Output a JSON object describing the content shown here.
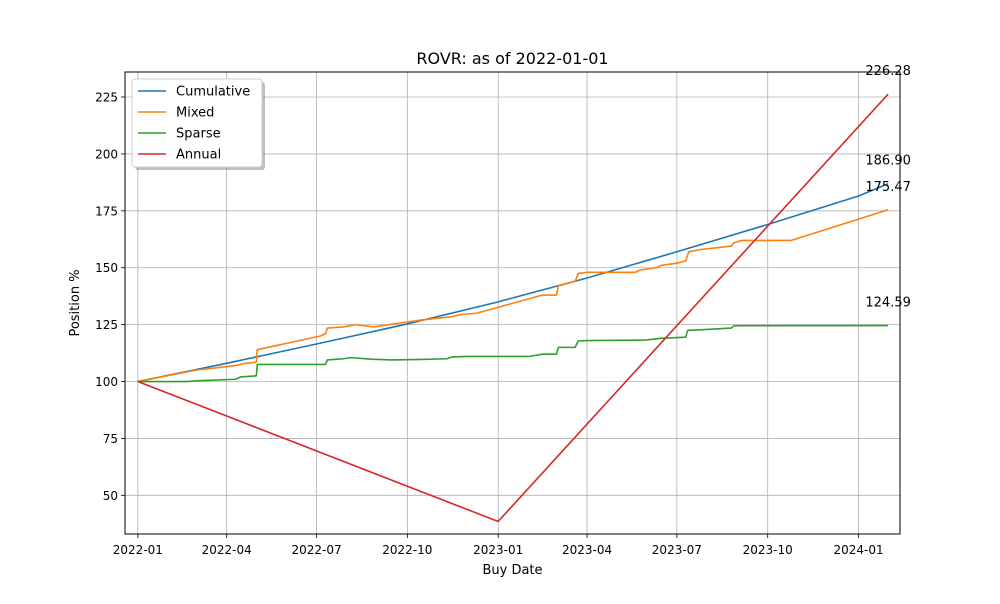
{
  "chart_data": {
    "type": "line",
    "title": "ROVR: as of 2022-01-01",
    "xlabel": "Buy Date",
    "ylabel": "Position %",
    "x_ticks": [
      "2022-01",
      "2022-04",
      "2022-07",
      "2022-10",
      "2023-01",
      "2023-04",
      "2023-07",
      "2023-10",
      "2024-01"
    ],
    "y_ticks": [
      50,
      75,
      100,
      125,
      150,
      175,
      200,
      225
    ],
    "xlim": [
      "2021-12-19",
      "2024-02-12"
    ],
    "ylim": [
      33,
      236
    ],
    "grid": true,
    "legend_position": "upper-left",
    "series": [
      {
        "name": "Cumulative",
        "color": "#1f77b4",
        "end_label": "186.90",
        "points": [
          [
            "2022-01-01",
            100.0
          ],
          [
            "2022-04-01",
            108.0
          ],
          [
            "2022-07-01",
            116.5
          ],
          [
            "2022-10-01",
            125.3
          ],
          [
            "2023-01-01",
            135.0
          ],
          [
            "2023-04-01",
            145.5
          ],
          [
            "2023-07-01",
            157.0
          ],
          [
            "2023-10-01",
            169.0
          ],
          [
            "2024-01-01",
            181.5
          ],
          [
            "2024-01-31",
            186.9
          ]
        ]
      },
      {
        "name": "Mixed",
        "color": "#ff7f0e",
        "end_label": "175.47",
        "points": [
          [
            "2022-01-01",
            100.0
          ],
          [
            "2022-03-01",
            105.0
          ],
          [
            "2022-04-10",
            107.0
          ],
          [
            "2022-04-20",
            108.0
          ],
          [
            "2022-05-01",
            108.5
          ],
          [
            "2022-05-02",
            114.0
          ],
          [
            "2022-07-05",
            120.0
          ],
          [
            "2022-07-10",
            121.0
          ],
          [
            "2022-07-12",
            123.5
          ],
          [
            "2022-07-28",
            124.0
          ],
          [
            "2022-08-10",
            125.0
          ],
          [
            "2022-08-28",
            124.0
          ],
          [
            "2022-09-20",
            125.5
          ],
          [
            "2022-10-15",
            127.0
          ],
          [
            "2022-11-15",
            128.5
          ],
          [
            "2022-11-25",
            129.5
          ],
          [
            "2022-12-10",
            130.0
          ],
          [
            "2023-02-15",
            138.0
          ],
          [
            "2023-03-01",
            138.0
          ],
          [
            "2023-03-03",
            142.0
          ],
          [
            "2023-03-20",
            144.0
          ],
          [
            "2023-03-23",
            147.5
          ],
          [
            "2023-04-01",
            148.0
          ],
          [
            "2023-05-20",
            148.0
          ],
          [
            "2023-05-25",
            149.0
          ],
          [
            "2023-06-10",
            150.0
          ],
          [
            "2023-06-15",
            151.0
          ],
          [
            "2023-07-01",
            152.0
          ],
          [
            "2023-07-10",
            153.0
          ],
          [
            "2023-07-13",
            157.0
          ],
          [
            "2023-07-25",
            158.0
          ],
          [
            "2023-08-25",
            159.5
          ],
          [
            "2023-08-28",
            161.0
          ],
          [
            "2023-09-05",
            162.0
          ],
          [
            "2023-10-25",
            162.0
          ],
          [
            "2024-01-31",
            175.47
          ]
        ]
      },
      {
        "name": "Sparse",
        "color": "#2ca02c",
        "end_label": "124.59",
        "points": [
          [
            "2022-01-01",
            100.0
          ],
          [
            "2022-02-20",
            100.0
          ],
          [
            "2022-03-01",
            100.3
          ],
          [
            "2022-04-10",
            101.0
          ],
          [
            "2022-04-15",
            102.0
          ],
          [
            "2022-05-01",
            102.5
          ],
          [
            "2022-05-02",
            107.5
          ],
          [
            "2022-07-10",
            107.5
          ],
          [
            "2022-07-12",
            109.5
          ],
          [
            "2022-07-28",
            110.0
          ],
          [
            "2022-08-05",
            110.5
          ],
          [
            "2022-08-25",
            109.8
          ],
          [
            "2022-09-15",
            109.5
          ],
          [
            "2022-10-15",
            109.7
          ],
          [
            "2022-11-10",
            110.0
          ],
          [
            "2022-11-15",
            110.8
          ],
          [
            "2022-12-01",
            111.0
          ],
          [
            "2023-02-01",
            111.0
          ],
          [
            "2023-02-15",
            112.0
          ],
          [
            "2023-03-01",
            112.0
          ],
          [
            "2023-03-03",
            115.0
          ],
          [
            "2023-03-20",
            115.0
          ],
          [
            "2023-03-23",
            117.8
          ],
          [
            "2023-04-01",
            118.0
          ],
          [
            "2023-05-30",
            118.2
          ],
          [
            "2023-06-15",
            119.0
          ],
          [
            "2023-07-10",
            119.5
          ],
          [
            "2023-07-12",
            122.5
          ],
          [
            "2023-07-25",
            122.7
          ],
          [
            "2023-08-25",
            123.5
          ],
          [
            "2023-08-28",
            124.5
          ],
          [
            "2024-01-31",
            124.59
          ]
        ]
      },
      {
        "name": "Annual",
        "color": "#d62728",
        "end_label": "226.28",
        "points": [
          [
            "2022-01-01",
            100.0
          ],
          [
            "2023-01-01",
            38.5
          ],
          [
            "2024-01-31",
            226.28
          ]
        ]
      }
    ]
  }
}
